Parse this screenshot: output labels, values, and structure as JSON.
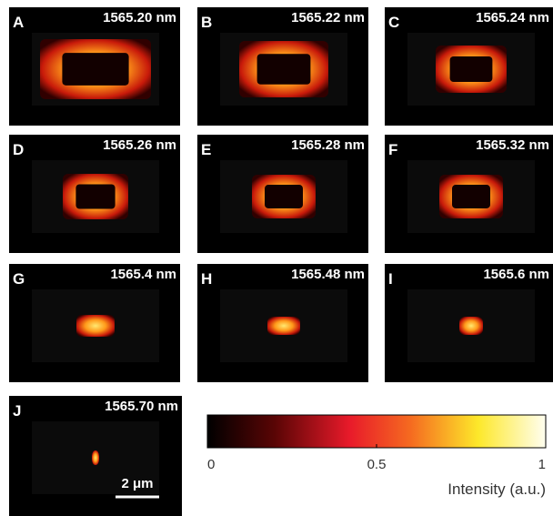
{
  "panels": [
    {
      "letter": "A",
      "wavelength": "1565.20 nm"
    },
    {
      "letter": "B",
      "wavelength": "1565.22 nm"
    },
    {
      "letter": "C",
      "wavelength": "1565.24 nm"
    },
    {
      "letter": "D",
      "wavelength": "1565.26 nm"
    },
    {
      "letter": "E",
      "wavelength": "1565.28 nm"
    },
    {
      "letter": "F",
      "wavelength": "1565.32 nm"
    },
    {
      "letter": "G",
      "wavelength": "1565.4 nm"
    },
    {
      "letter": "H",
      "wavelength": "1565.48 nm"
    },
    {
      "letter": "I",
      "wavelength": "1565.6 nm"
    },
    {
      "letter": "J",
      "wavelength": "1565.70 nm"
    }
  ],
  "scale_bar": "2 μm",
  "colorbar": {
    "ticks": [
      0,
      0.5,
      1
    ],
    "label": "Intensity (a.u.)"
  }
}
